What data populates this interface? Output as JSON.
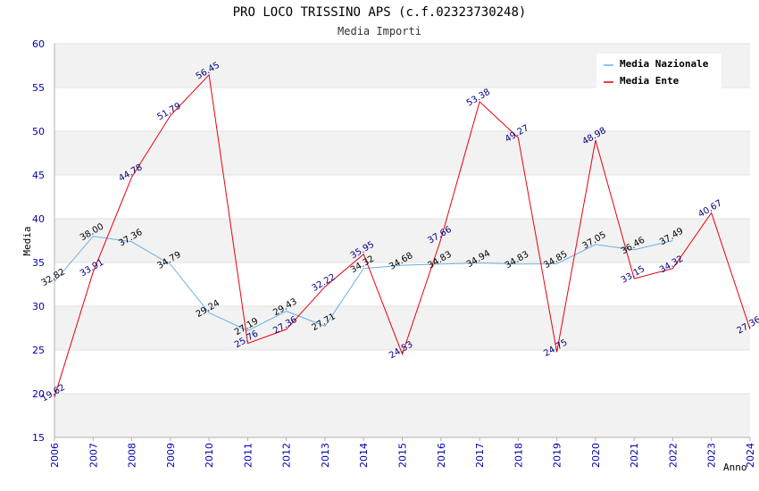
{
  "chart_data": {
    "type": "line",
    "title": "PRO LOCO TRISSINO APS (c.f.02323730248)",
    "subtitle": "Media Importi",
    "xlabel": "Anno",
    "ylabel": "Media",
    "ylim": [
      15,
      60
    ],
    "yticks": [
      15,
      20,
      25,
      30,
      35,
      40,
      45,
      50,
      55,
      60
    ],
    "x": [
      "2006",
      "2007",
      "2008",
      "2009",
      "2010",
      "2011",
      "2012",
      "2013",
      "2014",
      "2015",
      "2016",
      "2017",
      "2018",
      "2019",
      "2020",
      "2021",
      "2022",
      "2023",
      "2024"
    ],
    "grid": true,
    "legend_position": "top-right",
    "series": [
      {
        "name": "Media Nazionale",
        "color": "#6aaee6",
        "label_color": "#000000",
        "values": [
          32.82,
          38.0,
          37.36,
          34.79,
          29.24,
          27.19,
          29.43,
          27.71,
          34.32,
          34.68,
          34.83,
          34.94,
          34.83,
          34.85,
          37.05,
          36.46,
          37.49,
          null,
          null
        ],
        "labels": [
          "32.82",
          "38.00",
          "37.36",
          "34.79",
          "29.24",
          "27.19",
          "29.43",
          "27.71",
          "34.32",
          "34.68",
          "34.83",
          "34.94",
          "34.83",
          "34.85",
          "37.05",
          "36.46",
          "37.49",
          null,
          null
        ]
      },
      {
        "name": "Media Ente",
        "color": "#e8000b",
        "label_color": "#000080",
        "values": [
          19.62,
          33.91,
          44.78,
          51.79,
          56.45,
          25.76,
          27.36,
          32.22,
          35.95,
          24.53,
          37.66,
          53.38,
          49.27,
          24.75,
          48.98,
          33.15,
          34.32,
          40.67,
          27.36
        ],
        "labels": [
          "19.62",
          "33.91",
          "44.78",
          "51.79",
          "56.45",
          "25.76",
          "27.36",
          "32.22",
          "35.95",
          "24.53",
          "37.66",
          "53.38",
          "49.27",
          "24.75",
          "48.98",
          "33.15",
          "34.32",
          "40.67",
          "27.36"
        ]
      }
    ]
  }
}
